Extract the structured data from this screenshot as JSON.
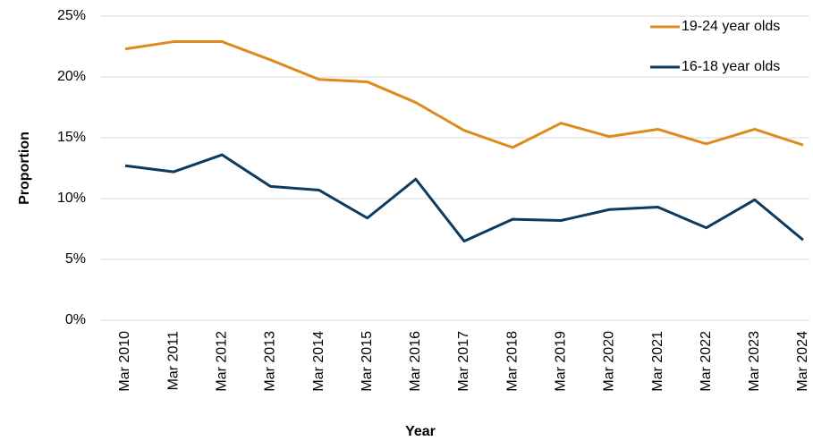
{
  "chart_data": {
    "type": "line",
    "x_label": "Year",
    "y_label": "Proportion",
    "categories": [
      "Mar 2010",
      "Mar 2011",
      "Mar 2012",
      "Mar 2013",
      "Mar 2014",
      "Mar 2015",
      "Mar 2016",
      "Mar 2017",
      "Mar 2018",
      "Mar 2019",
      "Mar 2020",
      "Mar 2021",
      "Mar 2022",
      "Mar 2023",
      "Mar 2024"
    ],
    "series": [
      {
        "name": "19-24 year olds",
        "color": "#dc8b1c",
        "values": [
          22.3,
          22.9,
          22.9,
          21.4,
          19.8,
          19.6,
          17.9,
          15.6,
          14.2,
          16.2,
          15.1,
          15.7,
          14.5,
          15.7,
          14.4
        ]
      },
      {
        "name": "16-18 year olds",
        "color": "#0b3b60",
        "values": [
          12.7,
          12.2,
          13.6,
          11.0,
          10.7,
          8.4,
          11.6,
          6.5,
          8.3,
          8.2,
          9.1,
          9.3,
          7.6,
          9.9,
          6.6
        ]
      }
    ],
    "ylim": [
      0,
      25
    ],
    "yticks": [
      {
        "value": 0,
        "label": "0%"
      },
      {
        "value": 5,
        "label": "5%"
      },
      {
        "value": 10,
        "label": "10%"
      },
      {
        "value": 15,
        "label": "15%"
      },
      {
        "value": 20,
        "label": "20%"
      },
      {
        "value": 25,
        "label": "25%"
      }
    ],
    "grid": true,
    "legend": "upper right"
  }
}
